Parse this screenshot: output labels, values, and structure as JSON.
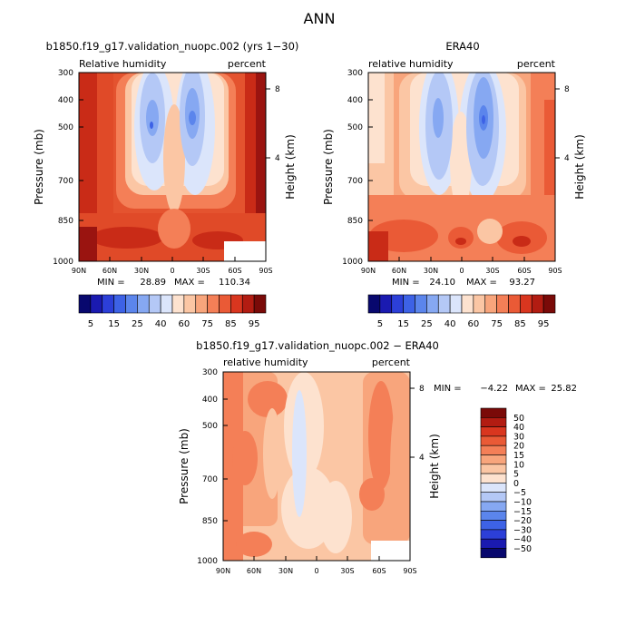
{
  "page_title": "ANN",
  "chart_data": [
    {
      "type": "heatmap",
      "title": "b1850.f19_g17.validation_nuopc.002 (yrs 1−30)",
      "variable": "Relative humidity",
      "units": "percent",
      "xlabel": "",
      "ylabel": "Pressure (mb)",
      "y2label": "Height (km)",
      "x_ticks": [
        "90N",
        "60N",
        "30N",
        "0",
        "30S",
        "60S",
        "90S"
      ],
      "y_ticks": [
        "300",
        "400",
        "500",
        "700",
        "850",
        "1000"
      ],
      "y2_ticks": [
        "8",
        "4"
      ],
      "min_label": "MIN =",
      "min": "28.89",
      "max_label": "MAX =",
      "max": "110.34"
    },
    {
      "type": "heatmap",
      "title": "ERA40",
      "variable": "relative humidity",
      "units": "percent",
      "xlabel": "",
      "ylabel": "Pressure (mb)",
      "y2label": "Height (km)",
      "x_ticks": [
        "90N",
        "60N",
        "30N",
        "0",
        "30S",
        "60S",
        "90S"
      ],
      "y_ticks": [
        "300",
        "400",
        "500",
        "700",
        "850",
        "1000"
      ],
      "y2_ticks": [
        "8",
        "4"
      ],
      "min_label": "MIN =",
      "min": "24.10",
      "max_label": "MAX =",
      "max": "93.27"
    },
    {
      "type": "heatmap",
      "title": "b1850.f19_g17.validation_nuopc.002 − ERA40",
      "variable": "relative humidity",
      "units": "percent",
      "xlabel": "",
      "ylabel": "Pressure (mb)",
      "y2label": "Height (km)",
      "x_ticks": [
        "90N",
        "60N",
        "30N",
        "0",
        "30S",
        "60S",
        "90S"
      ],
      "y_ticks": [
        "300",
        "400",
        "500",
        "700",
        "850",
        "1000"
      ],
      "y2_ticks": [
        "8",
        "4"
      ],
      "min_label": "MIN =",
      "min": "−4.22",
      "max_label": "MAX =",
      "max": "25.82"
    }
  ],
  "colorbar_abs": {
    "labels": [
      "5",
      "15",
      "25",
      "40",
      "60",
      "75",
      "85",
      "95"
    ],
    "colors": [
      "#08086e",
      "#1a1ab0",
      "#2c3fd8",
      "#3d62e6",
      "#5b85ec",
      "#86a8f2",
      "#b4c8f6",
      "#dbe5fb",
      "#fde2cf",
      "#fbc6a4",
      "#f8a57c",
      "#f47f57",
      "#ea5a36",
      "#d9361f",
      "#b21c12",
      "#7a0a08"
    ]
  },
  "colorbar_diff": {
    "labels": [
      "50",
      "40",
      "30",
      "20",
      "15",
      "10",
      "5",
      "0",
      "−5",
      "−10",
      "−15",
      "−20",
      "−30",
      "−40",
      "−50"
    ],
    "colors": [
      "#7a0a08",
      "#b21c12",
      "#d9361f",
      "#ea5a36",
      "#f47f57",
      "#f8a57c",
      "#fbc6a4",
      "#fde2cf",
      "#dbe5fb",
      "#b4c8f6",
      "#86a8f2",
      "#5b85ec",
      "#3d62e6",
      "#2c3fd8",
      "#1a1ab0",
      "#08086e"
    ]
  }
}
